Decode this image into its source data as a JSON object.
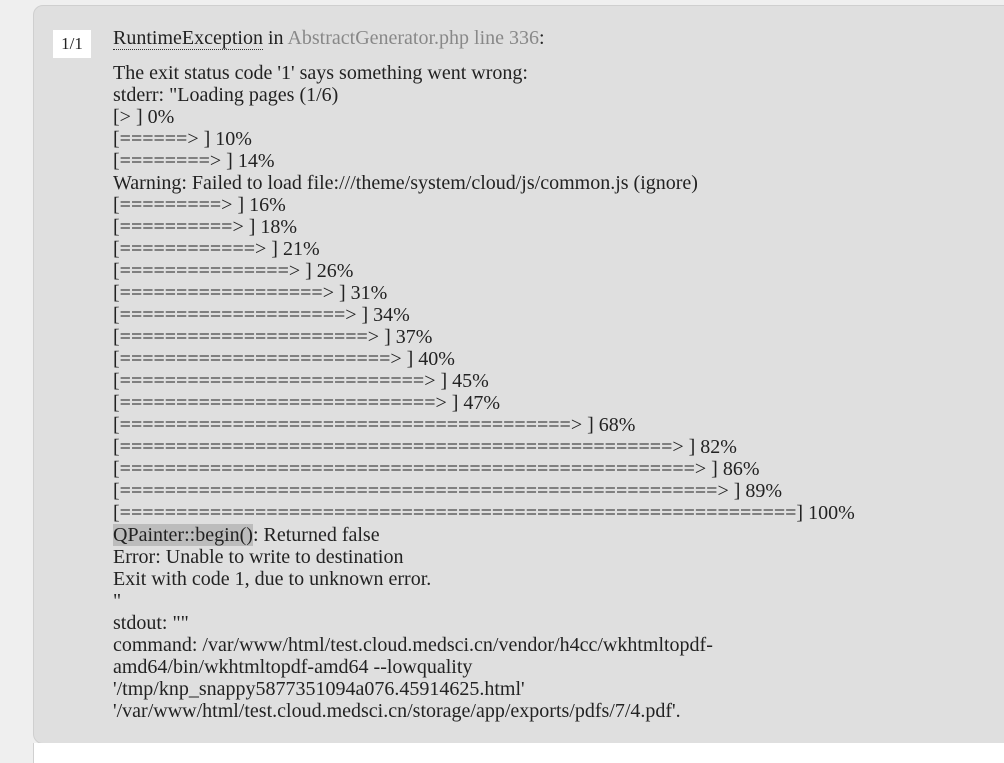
{
  "counter": "1/1",
  "exception": {
    "class": "RuntimeException",
    "in": " in ",
    "file": "AbstractGenerator.php line 336",
    "colon": ":"
  },
  "message": {
    "lines": [
      "The exit status code '1' says something went wrong:",
      "stderr: \"Loading pages (1/6)",
      "[> ] 0%",
      "[======> ] 10%",
      "[========> ] 14%",
      "Warning: Failed to load file:///theme/system/cloud/js/common.js (ignore)",
      "[=========> ] 16%",
      "[==========> ] 18%",
      "[============> ] 21%",
      "[===============> ] 26%",
      "[==================> ] 31%",
      "[====================> ] 34%",
      "[======================> ] 37%",
      "[========================> ] 40%",
      "[===========================> ] 45%",
      "[============================> ] 47%",
      "[========================================> ] 68%",
      "[=================================================> ] 82%",
      "[===================================================> ] 86%",
      "[=====================================================> ] 89%",
      "[============================================================] 100%",
      {
        "highlight": "QPainter::begin()",
        "text": ": Returned false"
      },
      "Error: Unable to write to destination",
      "Exit with code 1, due to unknown error.",
      "\"",
      "stdout: \"\"",
      "command: /var/www/html/test.cloud.medsci.cn/vendor/h4cc/wkhtmltopdf-",
      "amd64/bin/wkhtmltopdf-amd64 --lowquality",
      "'/tmp/knp_snappy5877351094a076.45914625.html'",
      "'/var/www/html/test.cloud.medsci.cn/storage/app/exports/pdfs/7/4.pdf'."
    ]
  }
}
